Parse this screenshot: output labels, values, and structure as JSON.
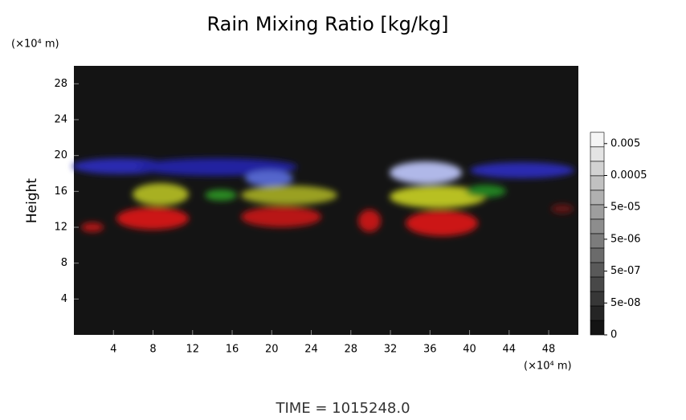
{
  "chart_data": {
    "type": "heatmap",
    "title": "Rain Mixing Ratio [kg/kg]",
    "y_label": "Height",
    "y_unit": "(×10⁴ m)",
    "x_unit": "(×10⁴ m)",
    "xlim": [
      0,
      51
    ],
    "xticks": [
      4,
      8,
      12,
      16,
      20,
      24,
      28,
      32,
      36,
      40,
      44,
      48
    ],
    "ylim": [
      0,
      30
    ],
    "yticks": [
      4,
      8,
      12,
      16,
      20,
      24,
      28
    ],
    "colorbar_ticks": [
      {
        "value": 0.005,
        "label": "0.005"
      },
      {
        "value": 0.0005,
        "label": "0.0005"
      },
      {
        "value": 5e-05,
        "label": "5e-05"
      },
      {
        "value": 5e-06,
        "label": "5e-06"
      },
      {
        "value": 5e-07,
        "label": "5e-07"
      },
      {
        "value": 5e-08,
        "label": "5e-08"
      },
      {
        "value": 0,
        "label": "0"
      }
    ],
    "background": "#141414",
    "footer": "TIME = 1015248.0"
  }
}
